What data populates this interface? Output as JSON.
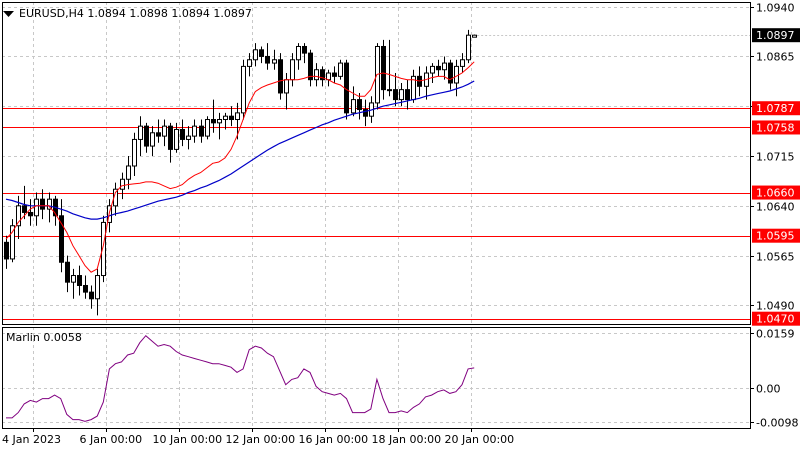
{
  "header": {
    "dropdown_icon": "triangle-down-icon",
    "text": "EURUSD,H4  1.0894 1.0898 1.0894 1.0897"
  },
  "colors": {
    "background": "#ffffff",
    "grid": "#c8c8c8",
    "candle_bull_fill": "#ffffff",
    "candle_bear_fill": "#000000",
    "candle_outline": "#000000",
    "ma_fast": "#ff0000",
    "ma_slow": "#0000c8",
    "level_line": "#ff0000",
    "oscillator": "#800080"
  },
  "chart_data": [
    {
      "type": "candlestick",
      "symbol": "EURUSD",
      "timeframe": "H4",
      "ylim": [
        1.0462,
        1.0947
      ],
      "y_ticks": [
        "1.0940",
        "1.0865",
        "1.0790",
        "1.0715",
        "1.0640",
        "1.0565",
        "1.0490"
      ],
      "x_tick_labels": [
        {
          "label": "4 Jan 2023",
          "index": 0
        },
        {
          "label": "6 Jan 00:00",
          "index": 12
        },
        {
          "label": "10 Jan 00:00",
          "index": 24
        },
        {
          "label": "12 Jan 00:00",
          "index": 36
        },
        {
          "label": "16 Jan 00:00",
          "index": 48
        },
        {
          "label": "18 Jan 00:00",
          "index": 60
        },
        {
          "label": "20 Jan 00:00",
          "index": 72
        }
      ],
      "current_price": "1.0897",
      "candles": [
        [
          1.0585,
          1.0595,
          1.0545,
          1.056
        ],
        [
          1.056,
          1.062,
          1.0555,
          1.061
        ],
        [
          1.061,
          1.0655,
          1.059,
          1.064
        ],
        [
          1.064,
          1.067,
          1.062,
          1.063
        ],
        [
          1.063,
          1.065,
          1.061,
          1.0625
        ],
        [
          1.0625,
          1.066,
          1.061,
          1.065
        ],
        [
          1.065,
          1.0665,
          1.062,
          1.0635
        ],
        [
          1.0635,
          1.066,
          1.0615,
          1.065
        ],
        [
          1.065,
          1.0655,
          1.061,
          1.0625
        ],
        [
          1.0625,
          1.065,
          1.054,
          1.0555
        ],
        [
          1.0555,
          1.0565,
          1.051,
          1.0525
        ],
        [
          1.0525,
          1.0545,
          1.05,
          1.0535
        ],
        [
          1.0535,
          1.055,
          1.0505,
          1.052
        ],
        [
          1.052,
          1.0535,
          1.05,
          1.051
        ],
        [
          1.051,
          1.052,
          1.0485,
          1.05
        ],
        [
          1.05,
          1.0545,
          1.0475,
          1.0535
        ],
        [
          1.0535,
          1.0625,
          1.0525,
          1.0615
        ],
        [
          1.0615,
          1.065,
          1.06,
          1.064
        ],
        [
          1.064,
          1.0675,
          1.0625,
          1.0665
        ],
        [
          1.0665,
          1.069,
          1.065,
          1.068
        ],
        [
          1.068,
          1.0715,
          1.0665,
          1.07
        ],
        [
          1.07,
          1.075,
          1.0685,
          1.074
        ],
        [
          1.074,
          1.0775,
          1.0715,
          1.076
        ],
        [
          1.076,
          1.0765,
          1.072,
          1.073
        ],
        [
          1.073,
          1.076,
          1.0715,
          1.075
        ],
        [
          1.075,
          1.077,
          1.0735,
          1.0745
        ],
        [
          1.0745,
          1.077,
          1.073,
          1.076
        ],
        [
          1.076,
          1.0765,
          1.0705,
          1.0725
        ],
        [
          1.0725,
          1.0765,
          1.072,
          1.0755
        ],
        [
          1.0755,
          1.077,
          1.073,
          1.074
        ],
        [
          1.074,
          1.076,
          1.0725,
          1.0745
        ],
        [
          1.0745,
          1.077,
          1.0735,
          1.076
        ],
        [
          1.076,
          1.077,
          1.0735,
          1.0745
        ],
        [
          1.0745,
          1.0775,
          1.074,
          1.077
        ],
        [
          1.077,
          1.08,
          1.075,
          1.0765
        ],
        [
          1.0765,
          1.078,
          1.074,
          1.077
        ],
        [
          1.077,
          1.078,
          1.0755,
          1.0775
        ],
        [
          1.0775,
          1.079,
          1.076,
          1.077
        ],
        [
          1.077,
          1.0795,
          1.074,
          1.078
        ],
        [
          1.078,
          1.086,
          1.077,
          1.085
        ],
        [
          1.085,
          1.087,
          1.0835,
          1.086
        ],
        [
          1.086,
          1.0885,
          1.085,
          1.0875
        ],
        [
          1.0875,
          1.088,
          1.0855,
          1.0865
        ],
        [
          1.0865,
          1.0885,
          1.0845,
          1.0855
        ],
        [
          1.0855,
          1.0875,
          1.0845,
          1.086
        ],
        [
          1.086,
          1.087,
          1.08,
          1.081
        ],
        [
          1.081,
          1.084,
          1.0785,
          1.083
        ],
        [
          1.083,
          1.087,
          1.082,
          1.086
        ],
        [
          1.086,
          1.0885,
          1.0845,
          1.088
        ],
        [
          1.088,
          1.0885,
          1.0855,
          1.087
        ],
        [
          1.087,
          1.0875,
          1.082,
          1.083
        ],
        [
          1.083,
          1.0855,
          1.082,
          1.0845
        ],
        [
          1.0845,
          1.085,
          1.082,
          1.083
        ],
        [
          1.083,
          1.0845,
          1.082,
          1.084
        ],
        [
          1.084,
          1.085,
          1.0825,
          1.0835
        ],
        [
          1.0835,
          1.086,
          1.083,
          1.0855
        ],
        [
          1.0855,
          1.086,
          1.077,
          1.078
        ],
        [
          1.078,
          1.082,
          1.0775,
          1.08
        ],
        [
          1.08,
          1.081,
          1.077,
          1.0785
        ],
        [
          1.0785,
          1.08,
          1.076,
          1.0775
        ],
        [
          1.0775,
          1.0805,
          1.0765,
          1.0795
        ],
        [
          1.0795,
          1.0885,
          1.0785,
          1.088
        ],
        [
          1.088,
          1.089,
          1.08,
          1.0815
        ],
        [
          1.0815,
          1.089,
          1.0805,
          1.0815
        ],
        [
          1.0815,
          1.084,
          1.079,
          1.08
        ],
        [
          1.08,
          1.0825,
          1.079,
          1.0815
        ],
        [
          1.0815,
          1.083,
          1.0785,
          1.08
        ],
        [
          1.08,
          1.0845,
          1.0795,
          1.0835
        ],
        [
          1.0835,
          1.085,
          1.0805,
          1.082
        ],
        [
          1.082,
          1.085,
          1.08,
          1.084
        ],
        [
          1.084,
          1.0855,
          1.0825,
          1.085
        ],
        [
          1.085,
          1.086,
          1.0835,
          1.0845
        ],
        [
          1.0845,
          1.0865,
          1.083,
          1.0855
        ],
        [
          1.0855,
          1.086,
          1.0815,
          1.0825
        ],
        [
          1.0825,
          1.086,
          1.0805,
          1.085
        ],
        [
          1.085,
          1.087,
          1.084,
          1.086
        ],
        [
          1.086,
          1.0905,
          1.0855,
          1.0897
        ],
        [
          1.0894,
          1.0898,
          1.0894,
          1.0897
        ]
      ],
      "ma_fast": [
        1.059,
        1.06,
        1.0615,
        1.0625,
        1.0635,
        1.064,
        1.064,
        1.064,
        1.063,
        1.0615,
        1.06,
        1.058,
        1.0565,
        1.055,
        1.054,
        1.0545,
        1.058,
        1.063,
        1.066,
        1.067,
        1.0672,
        1.0673,
        1.0674,
        1.0676,
        1.0676,
        1.0674,
        1.067,
        1.0666,
        1.0668,
        1.0672,
        1.068,
        1.0686,
        1.069,
        1.0697,
        1.0704,
        1.0706,
        1.0712,
        1.0725,
        1.0745,
        1.077,
        1.0795,
        1.0812,
        1.0818,
        1.0822,
        1.0825,
        1.0828,
        1.083,
        1.083,
        1.083,
        1.0832,
        1.0835,
        1.0835,
        1.0833,
        1.083,
        1.0825,
        1.0822,
        1.0815,
        1.081,
        1.0805,
        1.0805,
        1.0815,
        1.0838,
        1.084,
        1.0838,
        1.0835,
        1.0832,
        1.083,
        1.083,
        1.0828,
        1.083,
        1.0833,
        1.0835,
        1.0835,
        1.083,
        1.0835,
        1.084,
        1.0848,
        1.0857
      ],
      "ma_slow": [
        1.065,
        1.0648,
        1.0645,
        1.0642,
        1.064,
        1.064,
        1.064,
        1.064,
        1.0638,
        1.0635,
        1.0632,
        1.0628,
        1.0625,
        1.0622,
        1.062,
        1.062,
        1.0622,
        1.0625,
        1.0628,
        1.063,
        1.0632,
        1.0635,
        1.0638,
        1.0641,
        1.0644,
        1.0647,
        1.0649,
        1.0651,
        1.0653,
        1.0656,
        1.066,
        1.0663,
        1.0667,
        1.067,
        1.0674,
        1.0678,
        1.0683,
        1.0688,
        1.0694,
        1.07,
        1.0706,
        1.0712,
        1.0718,
        1.0724,
        1.0729,
        1.0734,
        1.0738,
        1.0742,
        1.0746,
        1.075,
        1.0754,
        1.0758,
        1.0762,
        1.0765,
        1.0769,
        1.0772,
        1.0775,
        1.0778,
        1.078,
        1.0782,
        1.0784,
        1.0787,
        1.079,
        1.0792,
        1.0794,
        1.0796,
        1.0798,
        1.08,
        1.0802,
        1.0805,
        1.0807,
        1.0809,
        1.0811,
        1.0813,
        1.0816,
        1.0819,
        1.0823,
        1.0828
      ],
      "levels": [
        "1.0787",
        "1.0758",
        "1.0660",
        "1.0595",
        "1.0470"
      ]
    },
    {
      "type": "line",
      "indicator": "Marlin",
      "label": "Marlin 0.0058",
      "ylim": [
        -0.0114,
        0.0175
      ],
      "y_ticks": [
        "0.0159",
        "0.00",
        "-0.0098"
      ],
      "series": [
        {
          "values": [
            -0.0085,
            -0.0085,
            -0.007,
            -0.0045,
            -0.0035,
            -0.004,
            -0.003,
            -0.003,
            -0.002,
            -0.003,
            -0.0075,
            -0.009,
            -0.009,
            -0.0095,
            -0.009,
            -0.008,
            -0.004,
            0.0055,
            0.007,
            0.0075,
            0.0095,
            0.01,
            0.013,
            0.015,
            0.0135,
            0.012,
            0.0125,
            0.012,
            0.0105,
            0.0095,
            0.009,
            0.0085,
            0.008,
            0.0075,
            0.007,
            0.007,
            0.0065,
            0.006,
            0.0045,
            0.0055,
            0.011,
            0.012,
            0.0115,
            0.01,
            0.009,
            0.005,
            0.001,
            0.0025,
            0.003,
            0.0055,
            0.0045,
            0.0005,
            -0.001,
            -0.0015,
            -0.002,
            -0.0015,
            -0.003,
            -0.007,
            -0.007,
            -0.007,
            -0.006,
            0.0025,
            -0.003,
            -0.007,
            -0.007,
            -0.0065,
            -0.007,
            -0.0055,
            -0.0045,
            -0.0025,
            -0.002,
            -0.001,
            -0.0005,
            -0.0015,
            -0.001,
            0.001,
            0.0055,
            0.0058
          ]
        }
      ]
    }
  ]
}
